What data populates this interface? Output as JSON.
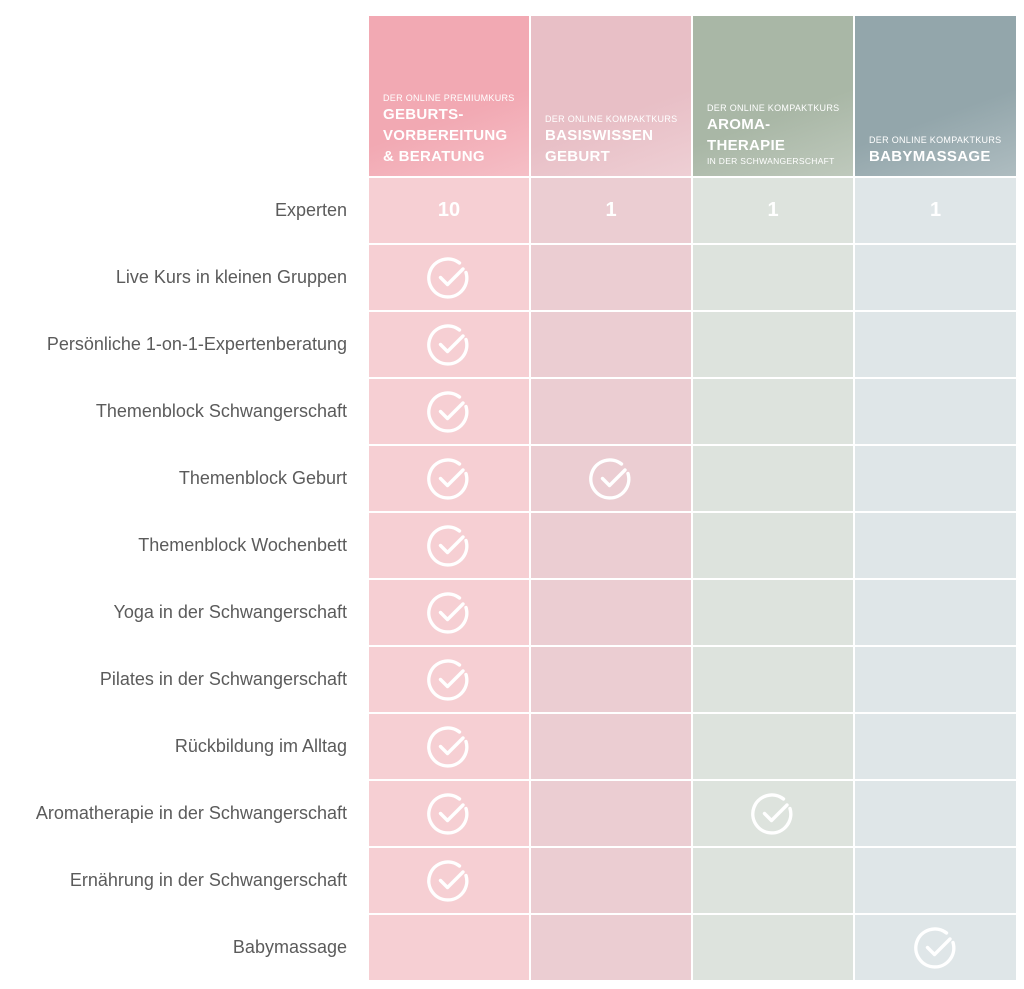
{
  "courses": [
    {
      "sub": "DER ONLINE PREMIUMKURS",
      "title_lines": [
        "GEBURTS-",
        "VORBEREITUNG",
        "& BERATUNG"
      ],
      "extra": "",
      "color": "#f2a9b3"
    },
    {
      "sub": "DER ONLINE KOMPAKTKURS",
      "title_lines": [
        "BASISWISSEN",
        "GEBURT"
      ],
      "extra": "",
      "color": "#e8bfc6"
    },
    {
      "sub": "DER ONLINE KOMPAKTKURS",
      "title_lines": [
        "AROMA-",
        "THERAPIE"
      ],
      "extra": "IN DER SCHWANGERSCHAFT",
      "color": "#a9b7a6"
    },
    {
      "sub": "DER ONLINE KOMPAKTKURS",
      "title_lines": [
        "BABYMASSAGE"
      ],
      "extra": "",
      "color": "#93a6ab"
    }
  ],
  "rows": [
    {
      "label": "Experten",
      "values": [
        "10",
        "1",
        "1",
        "1"
      ],
      "checks": [
        false,
        false,
        false,
        false
      ]
    },
    {
      "label": "Live Kurs in kleinen Gruppen",
      "values": [
        "",
        "",
        "",
        ""
      ],
      "checks": [
        true,
        false,
        false,
        false
      ]
    },
    {
      "label": "Persönliche 1-on-1-Expertenberatung",
      "values": [
        "",
        "",
        "",
        ""
      ],
      "checks": [
        true,
        false,
        false,
        false
      ]
    },
    {
      "label": "Themenblock Schwangerschaft",
      "values": [
        "",
        "",
        "",
        ""
      ],
      "checks": [
        true,
        false,
        false,
        false
      ]
    },
    {
      "label": "Themenblock Geburt",
      "values": [
        "",
        "",
        "",
        ""
      ],
      "checks": [
        true,
        true,
        false,
        false
      ]
    },
    {
      "label": "Themenblock Wochenbett",
      "values": [
        "",
        "",
        "",
        ""
      ],
      "checks": [
        true,
        false,
        false,
        false
      ]
    },
    {
      "label": "Yoga in der Schwangerschaft",
      "values": [
        "",
        "",
        "",
        ""
      ],
      "checks": [
        true,
        false,
        false,
        false
      ]
    },
    {
      "label": "Pilates in der Schwangerschaft",
      "values": [
        "",
        "",
        "",
        ""
      ],
      "checks": [
        true,
        false,
        false,
        false
      ]
    },
    {
      "label": "Rückbildung im Alltag",
      "values": [
        "",
        "",
        "",
        ""
      ],
      "checks": [
        true,
        false,
        false,
        false
      ]
    },
    {
      "label": "Aromatherapie in der Schwangerschaft",
      "values": [
        "",
        "",
        "",
        ""
      ],
      "checks": [
        true,
        false,
        true,
        false
      ]
    },
    {
      "label": "Ernährung in der Schwangerschaft",
      "values": [
        "",
        "",
        "",
        ""
      ],
      "checks": [
        true,
        false,
        false,
        false
      ]
    },
    {
      "label": "Babymassage",
      "values": [
        "",
        "",
        "",
        ""
      ],
      "checks": [
        false,
        false,
        false,
        true
      ]
    }
  ],
  "icons": {
    "check": "check-circle-icon"
  }
}
